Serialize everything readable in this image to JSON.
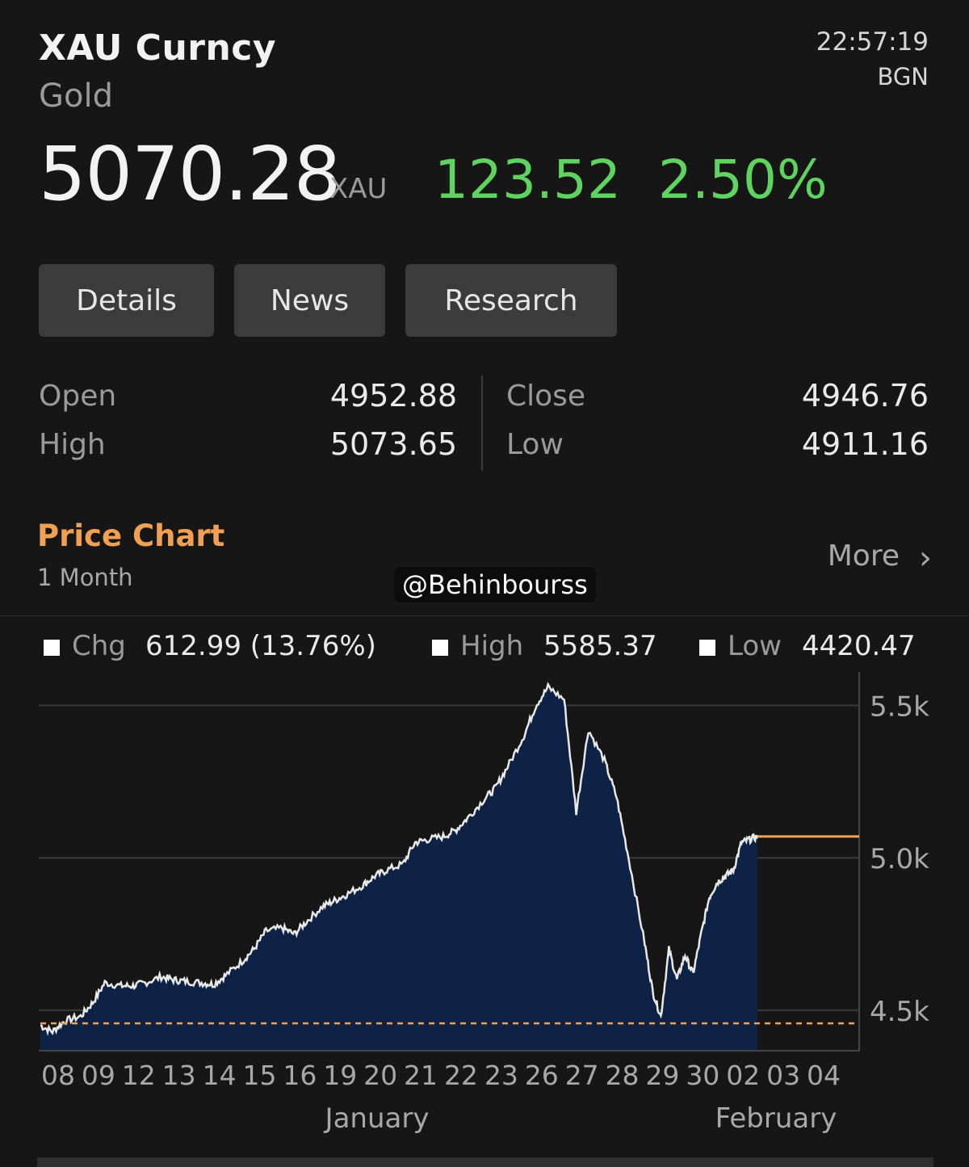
{
  "header": {
    "ticker": "XAU Curncy",
    "name": "Gold",
    "time": "22:57:19",
    "source": "BGN"
  },
  "quote": {
    "price": "5070.28",
    "unit": "XAU",
    "change": "123.52",
    "change_pct": "2.50%",
    "positive_color": "#5fd35f"
  },
  "tabs": [
    {
      "label": "Details"
    },
    {
      "label": "News"
    },
    {
      "label": "Research"
    }
  ],
  "stats": {
    "open_label": "Open",
    "open": "4952.88",
    "high_label": "High",
    "high": "5073.65",
    "close_label": "Close",
    "close": "4946.76",
    "low_label": "Low",
    "low": "4911.16"
  },
  "price_chart": {
    "title": "Price Chart",
    "range": "1 Month",
    "more_label": "More",
    "watermark": "@Behinbourss",
    "legend": {
      "chg_label": "Chg",
      "chg_value": "612.99 (13.76%)",
      "high_label": "High",
      "high_value": "5585.37",
      "low_label": "Low",
      "low_value": "4420.47"
    },
    "accent_color": "#f0a052",
    "fill_color": "#0d2244"
  },
  "chart_data": {
    "type": "area",
    "x_tick_labels": [
      "08",
      "09",
      "12",
      "13",
      "14",
      "15",
      "16",
      "19",
      "20",
      "21",
      "22",
      "23",
      "26",
      "27",
      "28",
      "29",
      "30",
      "02",
      "03",
      "04"
    ],
    "month_labels": [
      "January",
      "February"
    ],
    "y_tick_labels": [
      "5.5k",
      "5.0k",
      "4.5k"
    ],
    "y_ticks": [
      5500,
      5000,
      4500
    ],
    "ylim": [
      4370,
      5610
    ],
    "reference_line": 4457,
    "x": [
      0.0,
      0.3,
      0.6,
      1.0,
      1.3,
      1.6,
      2.0,
      2.3,
      2.6,
      3.0,
      3.3,
      3.6,
      4.0,
      4.3,
      4.6,
      5.0,
      5.3,
      5.6,
      6.0,
      6.3,
      6.6,
      7.0,
      7.3,
      7.6,
      8.0,
      8.3,
      8.6,
      9.0,
      9.3,
      9.6,
      10.0,
      10.3,
      10.6,
      11.0,
      11.3,
      11.6,
      12.0,
      12.3,
      12.6,
      13.0,
      13.3,
      13.6,
      14.0,
      14.3,
      14.6,
      15.0,
      15.2,
      15.4,
      15.6,
      15.8,
      16.0,
      16.2,
      16.4,
      16.6,
      16.8,
      17.0,
      17.2,
      17.4,
      17.6,
      17.8,
      18.0,
      18.3,
      18.6,
      19.0
    ],
    "y": [
      4450,
      4430,
      4465,
      4480,
      4525,
      4590,
      4580,
      4580,
      4590,
      4610,
      4600,
      4595,
      4590,
      4585,
      4615,
      4660,
      4700,
      4760,
      4770,
      4750,
      4790,
      4840,
      4860,
      4880,
      4910,
      4940,
      4960,
      4980,
      5050,
      5060,
      5070,
      5090,
      5130,
      5190,
      5230,
      5300,
      5400,
      5500,
      5560,
      5520,
      5150,
      5420,
      5320,
      5200,
      5000,
      4720,
      4560,
      4480,
      4700,
      4600,
      4680,
      4620,
      4750,
      4870,
      4920,
      4940,
      4960,
      5050,
      5060,
      5070,
      5070,
      5070,
      5070,
      5070
    ],
    "last_price": 5070,
    "chg": "612.99 (13.76%)",
    "high": 5585.37,
    "low": 4420.47,
    "title": "Price Chart"
  }
}
